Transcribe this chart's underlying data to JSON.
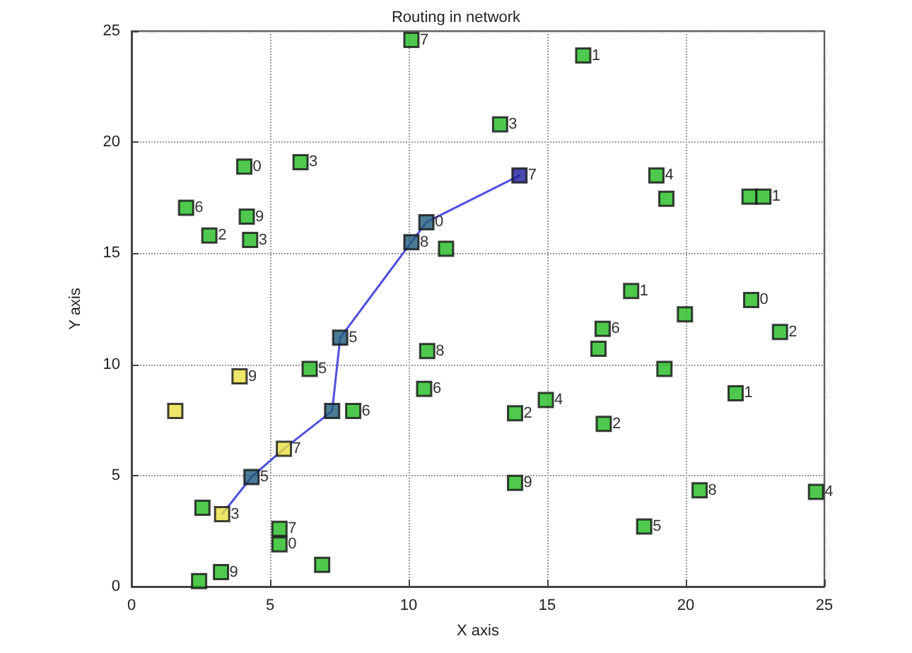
{
  "chart_data": {
    "type": "scatter",
    "title": "Routing in network",
    "xlabel": "X axis",
    "ylabel": "Y axis",
    "xlim": [
      0,
      25
    ],
    "xticks": [
      0,
      5,
      10,
      15,
      20,
      25
    ],
    "ylim": [
      0,
      25
    ],
    "yticks": [
      0,
      5,
      10,
      15,
      20,
      25
    ],
    "grid": true,
    "marker": "square",
    "series": [
      {
        "color": "#22bb22",
        "x": [
          10.1,
          13.3,
          4.07,
          6.1,
          1.97,
          4.16,
          2.81,
          4.28,
          11.35,
          16.3,
          18.94,
          19.3,
          22.3,
          22.8,
          18.03,
          19.97,
          22.36,
          23.4,
          17.0,
          16.85,
          19.23,
          21.8,
          14.95,
          13.84,
          17.04,
          13.84,
          20.5,
          24.7,
          18.5,
          6.43,
          10.67,
          10.56,
          8.0,
          2.56,
          5.34,
          5.34,
          6.88,
          3.23,
          2.44
        ],
        "values": [
          24.6,
          20.8,
          18.9,
          19.1,
          17.05,
          16.65,
          15.8,
          15.6,
          15.2,
          23.9,
          18.5,
          17.45,
          17.55,
          17.55,
          13.3,
          12.25,
          12.9,
          11.46,
          11.6,
          10.7,
          9.8,
          8.7,
          8.4,
          7.8,
          7.32,
          4.67,
          4.33,
          4.26,
          2.7,
          9.8,
          10.6,
          8.9,
          7.9,
          3.55,
          2.6,
          1.9,
          0.98,
          0.65,
          0.25
        ]
      },
      {
        "color": "#e8e040",
        "x": [
          3.9,
          1.58,
          5.5,
          3.27
        ],
        "values": [
          9.46,
          7.9,
          6.2,
          3.26
        ]
      },
      {
        "color": "#1f5a7a",
        "x": [
          4.33,
          7.24,
          7.53,
          10.1,
          10.64
        ],
        "values": [
          4.93,
          7.9,
          11.2,
          15.5,
          16.4
        ]
      },
      {
        "color": "#1a1a99",
        "x": [
          14.0
        ],
        "values": [
          18.5
        ]
      },
      {
        "type": "line",
        "marker": "none",
        "color": "#5050e0",
        "x": [
          3.27,
          4.33,
          5.5,
          7.24,
          7.53,
          10.1,
          10.64,
          14.0
        ],
        "values": [
          3.26,
          4.93,
          6.2,
          7.9,
          11.2,
          15.5,
          16.4,
          18.5
        ]
      }
    ],
    "annotations": [
      {
        "text": "7",
        "x": 10.1,
        "y": 24.6
      },
      {
        "text": "3",
        "x": 13.3,
        "y": 20.8
      },
      {
        "text": "0",
        "x": 4.07,
        "y": 18.9
      },
      {
        "text": "3",
        "x": 6.1,
        "y": 19.1
      },
      {
        "text": "6",
        "x": 1.97,
        "y": 17.05
      },
      {
        "text": "9",
        "x": 4.16,
        "y": 16.65
      },
      {
        "text": "2",
        "x": 2.81,
        "y": 15.8
      },
      {
        "text": "3",
        "x": 4.28,
        "y": 15.6
      },
      {
        "text": "0",
        "x": 10.64,
        "y": 16.4
      },
      {
        "text": "8",
        "x": 10.1,
        "y": 15.5
      },
      {
        "text": "7",
        "x": 14.0,
        "y": 18.5
      },
      {
        "text": "1",
        "x": 16.3,
        "y": 23.9
      },
      {
        "text": "4",
        "x": 18.94,
        "y": 18.5
      },
      {
        "text": "1",
        "x": 22.8,
        "y": 17.55
      },
      {
        "text": "1",
        "x": 18.03,
        "y": 13.3
      },
      {
        "text": "0",
        "x": 22.36,
        "y": 12.9
      },
      {
        "text": "2",
        "x": 23.4,
        "y": 11.46
      },
      {
        "text": "6",
        "x": 17.0,
        "y": 11.6
      },
      {
        "text": "1",
        "x": 21.8,
        "y": 8.7
      },
      {
        "text": "4",
        "x": 14.95,
        "y": 8.4
      },
      {
        "text": "2",
        "x": 13.84,
        "y": 7.8
      },
      {
        "text": "2",
        "x": 17.04,
        "y": 7.32
      },
      {
        "text": "9",
        "x": 13.84,
        "y": 4.67
      },
      {
        "text": "8",
        "x": 20.5,
        "y": 4.33
      },
      {
        "text": "4",
        "x": 24.7,
        "y": 4.26
      },
      {
        "text": "5",
        "x": 18.5,
        "y": 2.7
      },
      {
        "text": "5",
        "x": 7.53,
        "y": 11.2
      },
      {
        "text": "5",
        "x": 6.43,
        "y": 9.8
      },
      {
        "text": "8",
        "x": 10.67,
        "y": 10.6
      },
      {
        "text": "6",
        "x": 10.56,
        "y": 8.9
      },
      {
        "text": "9",
        "x": 3.9,
        "y": 9.46
      },
      {
        "text": "6",
        "x": 8.0,
        "y": 7.9
      },
      {
        "text": "7",
        "x": 5.5,
        "y": 6.2
      },
      {
        "text": "5",
        "x": 4.33,
        "y": 4.93
      },
      {
        "text": "3",
        "x": 3.27,
        "y": 3.26
      },
      {
        "text": "7",
        "x": 5.34,
        "y": 2.6
      },
      {
        "text": "0",
        "x": 5.34,
        "y": 1.9
      },
      {
        "text": "9",
        "x": 3.23,
        "y": 0.65
      }
    ]
  }
}
